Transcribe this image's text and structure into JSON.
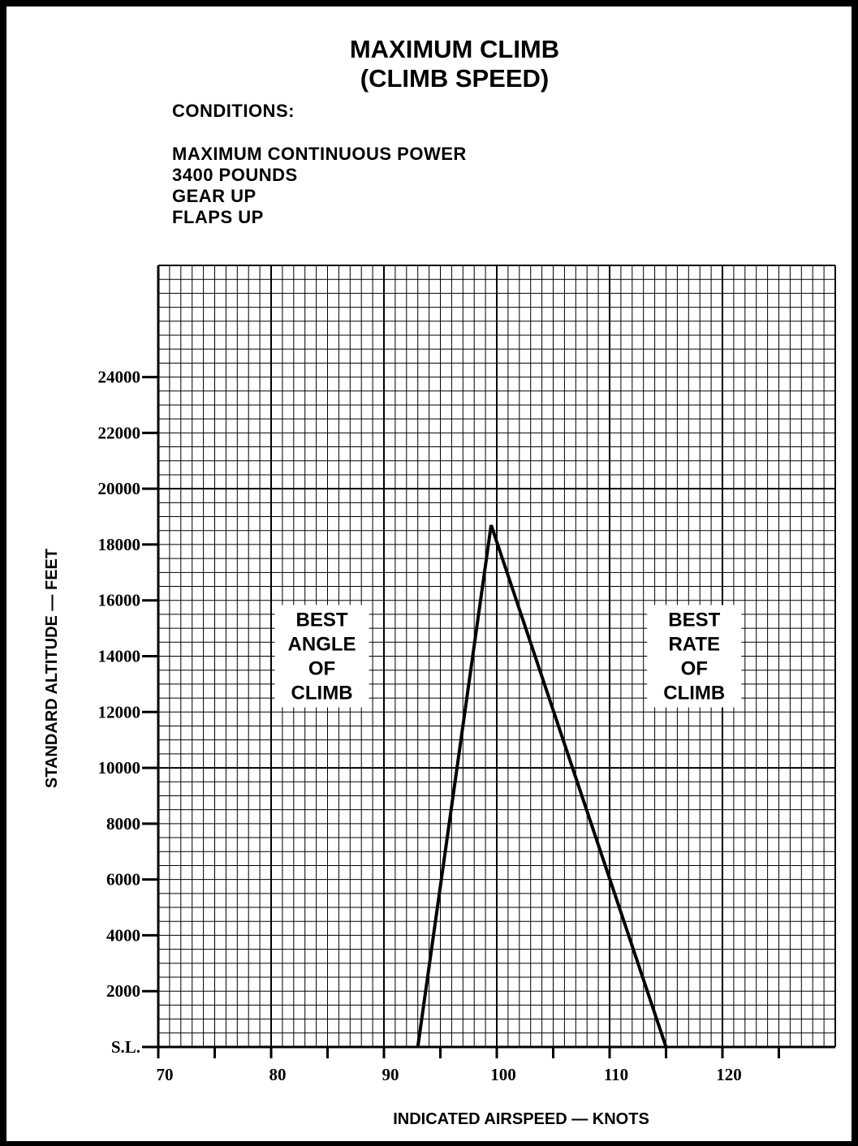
{
  "title": {
    "line1": "MAXIMUM CLIMB",
    "line2": "(CLIMB SPEED)"
  },
  "conditions": {
    "heading": "CONDITIONS:",
    "items": [
      "MAXIMUM CONTINUOUS POWER",
      "3400 POUNDS",
      "GEAR UP",
      "FLAPS UP"
    ]
  },
  "chart_data": {
    "type": "line",
    "title": "MAXIMUM CLIMB (CLIMB SPEED)",
    "xlabel": "INDICATED AIRSPEED — KNOTS",
    "ylabel": "STANDARD ALTITUDE — FEET",
    "xlim": [
      70,
      130
    ],
    "ylim": [
      0,
      28000
    ],
    "x_ticks": [
      70,
      80,
      90,
      100,
      110,
      120
    ],
    "x_tick_labels": [
      "70",
      "80",
      "90",
      "100",
      "110",
      "120"
    ],
    "y_ticks": [
      0,
      2000,
      4000,
      6000,
      8000,
      10000,
      12000,
      14000,
      16000,
      18000,
      20000,
      22000,
      24000
    ],
    "y_tick_labels": [
      "S.L.",
      "2000",
      "4000",
      "6000",
      "8000",
      "10000",
      "12000",
      "14000",
      "16000",
      "18000",
      "20000",
      "22000",
      "24000"
    ],
    "grid": true,
    "series": [
      {
        "name": "BEST ANGLE OF CLIMB",
        "x": [
          93,
          99.5
        ],
        "y": [
          0,
          18700
        ]
      },
      {
        "name": "BEST RATE OF CLIMB",
        "x": [
          115,
          99.5
        ],
        "y": [
          0,
          18700
        ]
      }
    ],
    "annotations": [
      {
        "lines": [
          "BEST",
          "ANGLE",
          "OF",
          "CLIMB"
        ],
        "x": 84.5,
        "y": 14000
      },
      {
        "lines": [
          "BEST",
          "RATE",
          "OF",
          "CLIMB"
        ],
        "x": 117.5,
        "y": 14000
      }
    ]
  }
}
